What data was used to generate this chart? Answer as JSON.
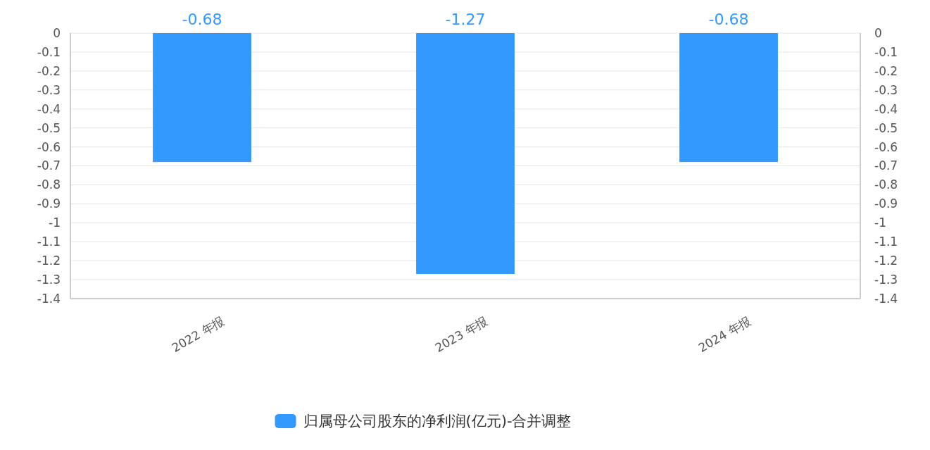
{
  "chart_data": {
    "type": "bar",
    "categories": [
      "2022 年报",
      "2023 年报",
      "2024 年报"
    ],
    "series": [
      {
        "name": "归属母公司股东的净利润(亿元)-合并调整",
        "color": "#3399ff",
        "values": [
          -0.68,
          -1.27,
          -0.68
        ]
      }
    ],
    "ylim": [
      -1.4,
      0
    ],
    "yticks": [
      0,
      -0.1,
      -0.2,
      -0.3,
      -0.4,
      -0.5,
      -0.6,
      -0.7,
      -0.8,
      -0.9,
      -1,
      -1.1,
      -1.2,
      -1.3,
      -1.4
    ],
    "y2lim": [
      -1.4,
      0
    ],
    "y2ticks": [
      0,
      -0.1,
      -0.2,
      -0.3,
      -0.4,
      -0.5,
      -0.6,
      -0.7,
      -0.8,
      -0.9,
      -1,
      -1.1,
      -1.2,
      -1.3,
      -1.4
    ],
    "grid": "y",
    "data_labels": true,
    "legend": "bottom"
  }
}
